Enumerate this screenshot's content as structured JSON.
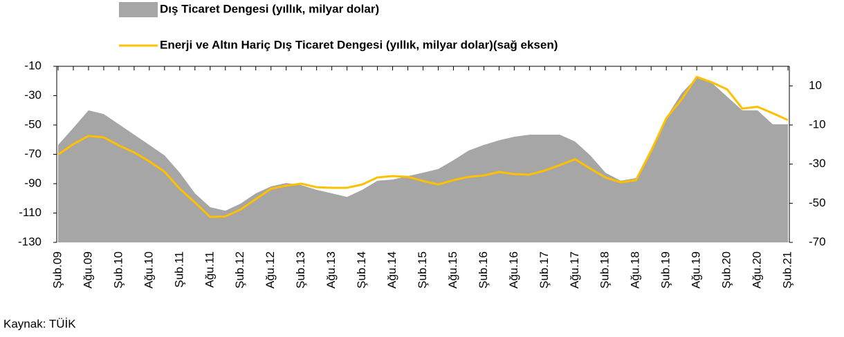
{
  "chart_data": {
    "type": "area_line",
    "source": "Kaynak: TÜİK",
    "categories": [
      "Şub.09",
      null,
      "Ağu.09",
      null,
      "Şub.10",
      null,
      "Ağu.10",
      null,
      "Şub.11",
      null,
      "Ağu.11",
      null,
      "Şub.12",
      null,
      "Ağu.12",
      null,
      "Şub.13",
      null,
      "Ağu.13",
      null,
      "Şub.14",
      null,
      "Ağu.14",
      null,
      "Şub.15",
      null,
      "Ağu.15",
      null,
      "Şub.16",
      null,
      "Ağu.16",
      null,
      "Şub.17",
      null,
      "Ağu.17",
      null,
      "Şub.18",
      null,
      "Ağu.18",
      null,
      "Şub.19",
      null,
      "Ağu.19",
      null,
      "Şub.20",
      null,
      "Ağu.20",
      null,
      "Şub.21"
    ],
    "series": [
      {
        "name": "Dış Ticaret Dengesi (yıllık, milyar dolar)",
        "color": "#a6a6a6",
        "kind": "area",
        "values": [
          -63.6,
          -52,
          -40,
          -42.5,
          -49.5,
          -56.6,
          -63.6,
          -70.7,
          -82.5,
          -96.6,
          -106,
          -108.4,
          -103.6,
          -96.6,
          -91.9,
          -89.5,
          -91,
          -94.2,
          -96.6,
          -99,
          -94.2,
          -88,
          -87.2,
          -84.8,
          -82.5,
          -80,
          -74,
          -67.4,
          -63.6,
          -60.4,
          -58,
          -56.6,
          -56.6,
          -56.6,
          -61.3,
          -70.7,
          -82.5,
          -88,
          -86.2,
          -66,
          -44.8,
          -28.4,
          -17.5,
          -21.3,
          -30.7,
          -40,
          -40,
          -49.5,
          -49.5
        ]
      },
      {
        "name": "Enerji ve Altın Hariç Dış Ticaret Dengesi (yıllık, milyar dolar)(sağ eksen)",
        "color": "#ffc000",
        "kind": "line",
        "axis": "y2",
        "values": [
          -25.1,
          -19.8,
          -15.6,
          -16.3,
          -20.5,
          -24,
          -28.6,
          -33.9,
          -42.6,
          -49.6,
          -57,
          -56.7,
          -53.2,
          -47.9,
          -42.6,
          -41,
          -40,
          -41.8,
          -42.1,
          -42.1,
          -40.4,
          -36.8,
          -36.1,
          -36.5,
          -38.6,
          -40.4,
          -38.2,
          -36.5,
          -35.8,
          -34,
          -35.1,
          -35.4,
          -33.3,
          -30.5,
          -27.5,
          -32.3,
          -36.8,
          -39.3,
          -38.2,
          -23.3,
          -6.5,
          3,
          14.6,
          11.8,
          8.2,
          -1.6,
          -0.7,
          -4,
          -7.5
        ]
      }
    ],
    "ylim": [
      -130,
      -10
    ],
    "yticks": [
      -130,
      -110,
      -90,
      -70,
      -50,
      -30,
      -10
    ],
    "y2lim": [
      -70,
      20
    ],
    "y2ticks": [
      -70,
      -50,
      -30,
      -10,
      10
    ]
  }
}
